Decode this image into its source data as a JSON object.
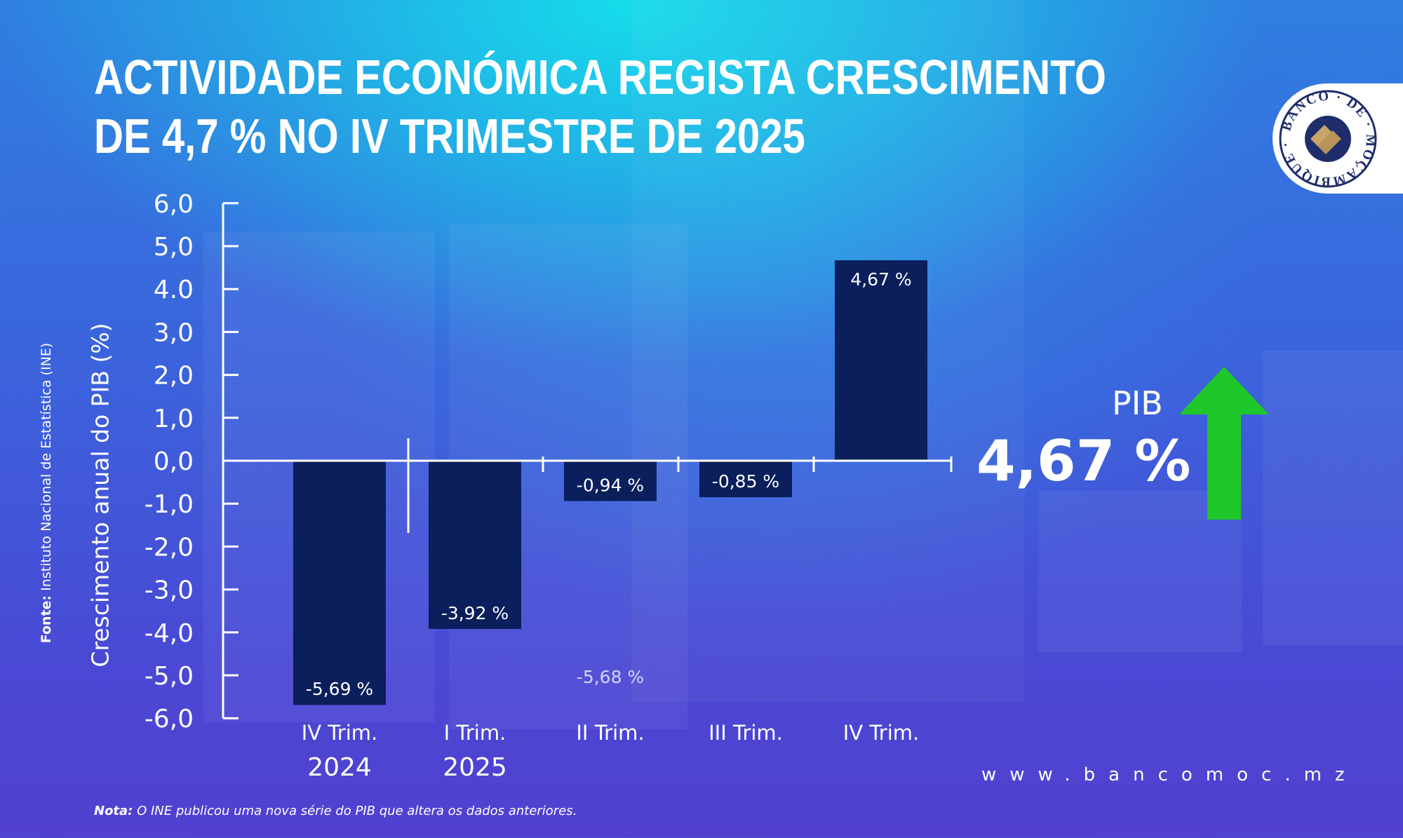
{
  "title_lines": [
    "ACTIVIDADE ECONÓMICA REGISTA CRESCIMENTO",
    "DE 4,7 % NO IV TRIMESTRE DE 2025"
  ],
  "logo_text": "BANCO DE MOÇAMBIQUE",
  "source_label": "Fonte:",
  "source_text": " Instituto Nacional de Estatística (INE)",
  "highlight": {
    "label": "PIB",
    "value": "4,67 %",
    "arrow_color": "#1ec72a"
  },
  "website": "www.bancomoc.mz",
  "note_label": "Nota:",
  "note_text": " O INE publicou uma nova série do PIB que altera os dados anteriores.",
  "colors": {
    "bar": "#0a1f5c",
    "axis": "#ffffff"
  },
  "chart_data": {
    "type": "bar",
    "ylabel": "Crescimento anual do PIB (%)",
    "ylim": [
      -6,
      6
    ],
    "yticks": [
      "6,0",
      "5,0",
      "4.0",
      "3,0",
      "2,0",
      "1,0",
      "0,0",
      "-1,0",
      "-2,0",
      "-3,0",
      "-4,0",
      "-5,0",
      "-6,0"
    ],
    "ytick_values": [
      6,
      5,
      4,
      3,
      2,
      1,
      0,
      -1,
      -2,
      -3,
      -4,
      -5,
      -6
    ],
    "categories": [
      "IV Trim.",
      "I Trim.",
      "II Trim.",
      "III Trim.",
      "IV Trim."
    ],
    "year_labels": [
      "2024",
      "2025",
      "",
      "",
      ""
    ],
    "values": [
      -5.69,
      -3.92,
      -0.94,
      -0.85,
      4.67
    ],
    "data_labels": [
      "-5,69 %",
      "-3,92 %",
      "-0,94 %",
      "-0,85 %",
      "4,67 %"
    ],
    "annotations": [
      {
        "category_index": 2,
        "text": "-5,68 %"
      }
    ],
    "grid": false
  }
}
